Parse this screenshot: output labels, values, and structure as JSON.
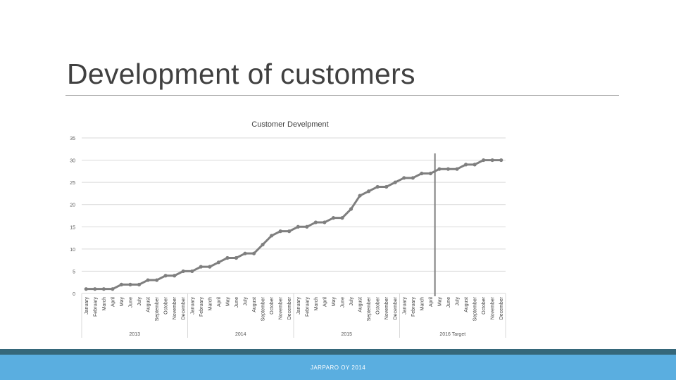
{
  "slide": {
    "title": "Development of customers",
    "footer": "JARPARO OY 2014"
  },
  "colors": {
    "title_text": "#404040",
    "series_line": "#7f7f7f",
    "marker_line": "#7f7f7f",
    "gridline": "#d9d9d9",
    "footer_bar": "#5aaee0",
    "footer_dark": "#35677a"
  },
  "chart_data": {
    "type": "line",
    "title": "Customer Develpment",
    "xlabel": "",
    "ylabel": "",
    "ylim": [
      0,
      35
    ],
    "yticks": [
      0,
      5,
      10,
      15,
      20,
      25,
      30,
      35
    ],
    "grid": true,
    "legend": "none",
    "months": [
      "January",
      "February",
      "March",
      "April",
      "May",
      "June",
      "July",
      "August",
      "September",
      "October",
      "November",
      "December"
    ],
    "groups": [
      "2013",
      "2014",
      "2015",
      "2016 Target"
    ],
    "vertical_marker_after_month": "April",
    "vertical_marker_group": "2016 Target",
    "series": [
      {
        "values": [
          1,
          1,
          1,
          1,
          2,
          2,
          2,
          3,
          3,
          4,
          4,
          5,
          5,
          6,
          6,
          7,
          8,
          8,
          9,
          9,
          11,
          13,
          14,
          14,
          15,
          15,
          16,
          16,
          17,
          17,
          19,
          22,
          23,
          24,
          24,
          25,
          26,
          26,
          27,
          27,
          28,
          28,
          28,
          29,
          29,
          30,
          30,
          30
        ]
      }
    ]
  }
}
